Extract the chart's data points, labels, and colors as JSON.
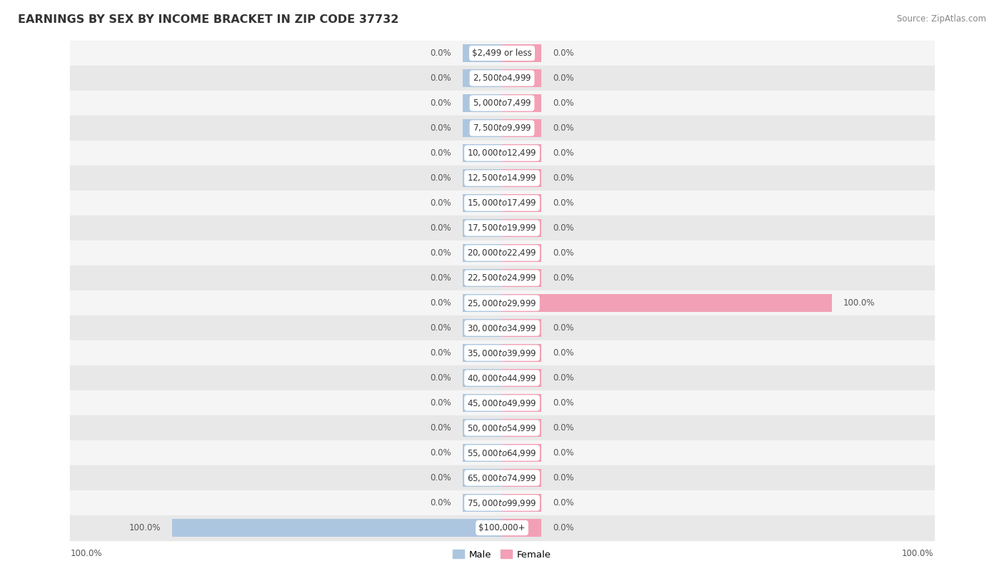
{
  "title": "EARNINGS BY SEX BY INCOME BRACKET IN ZIP CODE 37732",
  "source": "Source: ZipAtlas.com",
  "categories": [
    "$2,499 or less",
    "$2,500 to $4,999",
    "$5,000 to $7,499",
    "$7,500 to $9,999",
    "$10,000 to $12,499",
    "$12,500 to $14,999",
    "$15,000 to $17,499",
    "$17,500 to $19,999",
    "$20,000 to $22,499",
    "$22,500 to $24,999",
    "$25,000 to $29,999",
    "$30,000 to $34,999",
    "$35,000 to $39,999",
    "$40,000 to $44,999",
    "$45,000 to $49,999",
    "$50,000 to $54,999",
    "$55,000 to $64,999",
    "$65,000 to $74,999",
    "$75,000 to $99,999",
    "$100,000+"
  ],
  "male_values": [
    0.0,
    0.0,
    0.0,
    0.0,
    0.0,
    0.0,
    0.0,
    0.0,
    0.0,
    0.0,
    0.0,
    0.0,
    0.0,
    0.0,
    0.0,
    0.0,
    0.0,
    0.0,
    0.0,
    100.0
  ],
  "female_values": [
    0.0,
    0.0,
    0.0,
    0.0,
    0.0,
    0.0,
    0.0,
    0.0,
    0.0,
    0.0,
    100.0,
    0.0,
    0.0,
    0.0,
    0.0,
    0.0,
    0.0,
    0.0,
    0.0,
    0.0
  ],
  "male_color": "#adc6e0",
  "female_color": "#f2a0b5",
  "bg_dark_color": "#e8e8e8",
  "bg_light_color": "#f5f5f5",
  "title_fontsize": 11.5,
  "source_fontsize": 8.5,
  "pct_label_fontsize": 8.5,
  "category_fontsize": 8.5,
  "legend_fontsize": 9.5,
  "stub_size": 5.0,
  "max_val": 100.0,
  "legend_male": "Male",
  "legend_female": "Female"
}
